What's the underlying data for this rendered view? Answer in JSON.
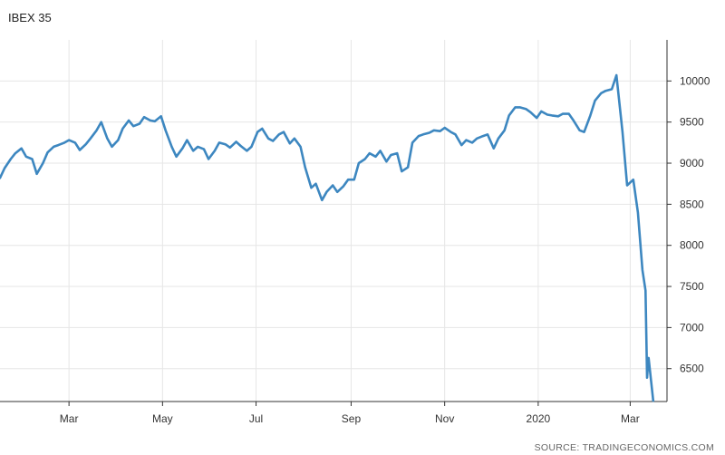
{
  "title": "IBEX 35",
  "source": "SOURCE: TRADINGECONOMICS.COM",
  "chart_data": {
    "type": "line",
    "title": "IBEX 35",
    "xlabel": "",
    "ylabel": "",
    "ylim": [
      6100,
      10500
    ],
    "y_ticks": [
      6500,
      7000,
      7500,
      8000,
      8500,
      9000,
      9500,
      10000
    ],
    "x_ticks": [
      {
        "label": "Mar",
        "date": "2019-03-01"
      },
      {
        "label": "May",
        "date": "2019-05-01"
      },
      {
        "label": "Jul",
        "date": "2019-07-01"
      },
      {
        "label": "Sep",
        "date": "2019-09-01"
      },
      {
        "label": "Nov",
        "date": "2019-11-01"
      },
      {
        "label": "2020",
        "date": "2020-01-01"
      },
      {
        "label": "Mar",
        "date": "2020-03-01"
      }
    ],
    "xlim": [
      "2019-01-15",
      "2020-03-25"
    ],
    "grid": true,
    "color": "#3d87c0",
    "series": [
      {
        "name": "",
        "points": [
          [
            "2019-01-15",
            8820
          ],
          [
            "2019-01-18",
            8940
          ],
          [
            "2019-01-22",
            9050
          ],
          [
            "2019-01-25",
            9120
          ],
          [
            "2019-01-29",
            9180
          ],
          [
            "2019-02-01",
            9080
          ],
          [
            "2019-02-05",
            9050
          ],
          [
            "2019-02-08",
            8870
          ],
          [
            "2019-02-12",
            9000
          ],
          [
            "2019-02-15",
            9130
          ],
          [
            "2019-02-19",
            9200
          ],
          [
            "2019-02-22",
            9220
          ],
          [
            "2019-02-26",
            9250
          ],
          [
            "2019-03-01",
            9280
          ],
          [
            "2019-03-05",
            9250
          ],
          [
            "2019-03-08",
            9160
          ],
          [
            "2019-03-12",
            9230
          ],
          [
            "2019-03-15",
            9300
          ],
          [
            "2019-03-19",
            9400
          ],
          [
            "2019-03-22",
            9500
          ],
          [
            "2019-03-26",
            9300
          ],
          [
            "2019-03-29",
            9200
          ],
          [
            "2019-04-02",
            9280
          ],
          [
            "2019-04-05",
            9420
          ],
          [
            "2019-04-09",
            9520
          ],
          [
            "2019-04-12",
            9450
          ],
          [
            "2019-04-16",
            9480
          ],
          [
            "2019-04-19",
            9560
          ],
          [
            "2019-04-23",
            9520
          ],
          [
            "2019-04-26",
            9510
          ],
          [
            "2019-04-30",
            9570
          ],
          [
            "2019-05-03",
            9400
          ],
          [
            "2019-05-07",
            9200
          ],
          [
            "2019-05-10",
            9080
          ],
          [
            "2019-05-14",
            9180
          ],
          [
            "2019-05-17",
            9280
          ],
          [
            "2019-05-21",
            9150
          ],
          [
            "2019-05-24",
            9200
          ],
          [
            "2019-05-28",
            9170
          ],
          [
            "2019-05-31",
            9050
          ],
          [
            "2019-06-04",
            9150
          ],
          [
            "2019-06-07",
            9250
          ],
          [
            "2019-06-11",
            9230
          ],
          [
            "2019-06-14",
            9190
          ],
          [
            "2019-06-18",
            9260
          ],
          [
            "2019-06-21",
            9210
          ],
          [
            "2019-06-25",
            9150
          ],
          [
            "2019-06-28",
            9200
          ],
          [
            "2019-07-02",
            9380
          ],
          [
            "2019-07-05",
            9420
          ],
          [
            "2019-07-09",
            9300
          ],
          [
            "2019-07-12",
            9270
          ],
          [
            "2019-07-16",
            9350
          ],
          [
            "2019-07-19",
            9380
          ],
          [
            "2019-07-23",
            9240
          ],
          [
            "2019-07-26",
            9300
          ],
          [
            "2019-07-30",
            9200
          ],
          [
            "2019-08-02",
            8950
          ],
          [
            "2019-08-06",
            8700
          ],
          [
            "2019-08-09",
            8750
          ],
          [
            "2019-08-13",
            8550
          ],
          [
            "2019-08-16",
            8650
          ],
          [
            "2019-08-20",
            8730
          ],
          [
            "2019-08-23",
            8650
          ],
          [
            "2019-08-27",
            8720
          ],
          [
            "2019-08-30",
            8800
          ],
          [
            "2019-09-03",
            8800
          ],
          [
            "2019-09-06",
            9000
          ],
          [
            "2019-09-10",
            9050
          ],
          [
            "2019-09-13",
            9120
          ],
          [
            "2019-09-17",
            9080
          ],
          [
            "2019-09-20",
            9150
          ],
          [
            "2019-09-24",
            9020
          ],
          [
            "2019-09-27",
            9100
          ],
          [
            "2019-10-01",
            9120
          ],
          [
            "2019-10-04",
            8900
          ],
          [
            "2019-10-08",
            8950
          ],
          [
            "2019-10-11",
            9250
          ],
          [
            "2019-10-15",
            9330
          ],
          [
            "2019-10-18",
            9350
          ],
          [
            "2019-10-22",
            9370
          ],
          [
            "2019-10-25",
            9400
          ],
          [
            "2019-10-29",
            9390
          ],
          [
            "2019-11-01",
            9430
          ],
          [
            "2019-11-05",
            9380
          ],
          [
            "2019-11-08",
            9350
          ],
          [
            "2019-11-12",
            9220
          ],
          [
            "2019-11-15",
            9280
          ],
          [
            "2019-11-19",
            9250
          ],
          [
            "2019-11-22",
            9300
          ],
          [
            "2019-11-26",
            9330
          ],
          [
            "2019-11-29",
            9350
          ],
          [
            "2019-12-03",
            9180
          ],
          [
            "2019-12-06",
            9300
          ],
          [
            "2019-12-10",
            9400
          ],
          [
            "2019-12-13",
            9580
          ],
          [
            "2019-12-17",
            9680
          ],
          [
            "2019-12-20",
            9680
          ],
          [
            "2019-12-24",
            9660
          ],
          [
            "2019-12-27",
            9620
          ],
          [
            "2019-12-31",
            9550
          ],
          [
            "2020-01-03",
            9630
          ],
          [
            "2020-01-07",
            9590
          ],
          [
            "2020-01-10",
            9580
          ],
          [
            "2020-01-14",
            9570
          ],
          [
            "2020-01-17",
            9600
          ],
          [
            "2020-01-21",
            9600
          ],
          [
            "2020-01-24",
            9520
          ],
          [
            "2020-01-28",
            9400
          ],
          [
            "2020-01-31",
            9380
          ],
          [
            "2020-02-04",
            9580
          ],
          [
            "2020-02-07",
            9760
          ],
          [
            "2020-02-11",
            9850
          ],
          [
            "2020-02-14",
            9880
          ],
          [
            "2020-02-18",
            9900
          ],
          [
            "2020-02-21",
            10070
          ],
          [
            "2020-02-25",
            9380
          ],
          [
            "2020-02-28",
            8730
          ],
          [
            "2020-03-03",
            8800
          ],
          [
            "2020-03-06",
            8400
          ],
          [
            "2020-03-09",
            7700
          ],
          [
            "2020-03-11",
            7450
          ],
          [
            "2020-03-12",
            6390
          ],
          [
            "2020-03-13",
            6630
          ],
          [
            "2020-03-16",
            6110
          ]
        ]
      }
    ]
  }
}
